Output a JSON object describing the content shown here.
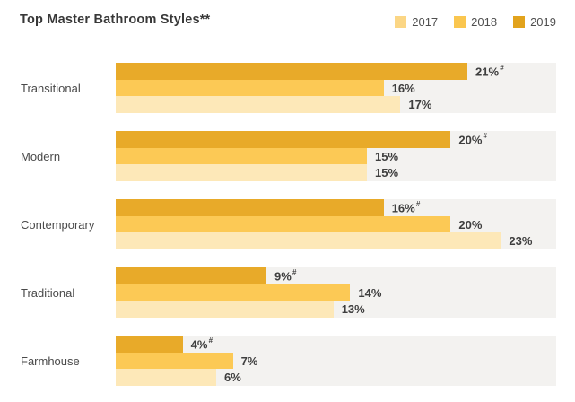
{
  "title": "Top Master Bathroom Styles**",
  "legend": [
    {
      "label": "2017",
      "swatch_color": "#fbd685"
    },
    {
      "label": "2018",
      "swatch_color": "#fac64f"
    },
    {
      "label": "2019",
      "swatch_color": "#e2a31c"
    }
  ],
  "style": {
    "bar_2019": "#e8aa29",
    "bar_2018": "#fcc955",
    "bar_2017": "#fde8b8",
    "track": "#f3f2f0",
    "title_text": "#383838",
    "category_text": "#4a4a4a",
    "value_text": "#3e3e3e",
    "legend_text": "#4f4f4f"
  },
  "chart_data": {
    "type": "bar",
    "orientation": "horizontal",
    "title": "Top Master Bathroom Styles**",
    "categories": [
      "Transitional",
      "Modern",
      "Contemporary",
      "Traditional",
      "Farmhouse"
    ],
    "series": [
      {
        "name": "2019",
        "values": [
          21,
          20,
          16,
          9,
          4
        ],
        "value_marker": "#"
      },
      {
        "name": "2018",
        "values": [
          16,
          15,
          20,
          14,
          7
        ]
      },
      {
        "name": "2017",
        "values": [
          17,
          15,
          23,
          13,
          6
        ]
      }
    ],
    "row_order_top_to_bottom": [
      "2019",
      "2018",
      "2017"
    ],
    "value_suffix": "%",
    "xlim": [
      0,
      26.3
    ],
    "grid": false,
    "legend_position": "top-right"
  }
}
